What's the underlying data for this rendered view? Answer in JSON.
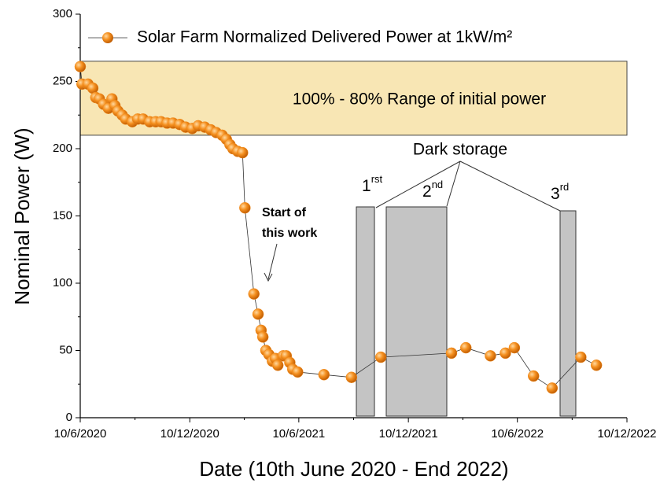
{
  "chart_data": {
    "type": "line",
    "x_label": "Date (10th June 2020  -  End 2022)",
    "y_label": "Nominal Power (W)",
    "xlim": [
      "2020-06-10",
      "2022-12-10"
    ],
    "xticks": [
      {
        "value": "2020-06-10",
        "label": "10/6/2020"
      },
      {
        "value": "2020-12-10",
        "label": "10/12/2020"
      },
      {
        "value": "2021-06-10",
        "label": "10/6/2021"
      },
      {
        "value": "2021-12-10",
        "label": "10/12/2021"
      },
      {
        "value": "2022-06-10",
        "label": "10/6/2022"
      },
      {
        "value": "2022-12-10",
        "label": "10/12/2022"
      }
    ],
    "ylim": [
      0,
      300
    ],
    "yticks": [
      0,
      50,
      100,
      150,
      200,
      250,
      300
    ],
    "x": [
      "2020-06-10",
      "2020-06-13",
      "2020-06-23",
      "2020-07-01",
      "2020-07-06",
      "2020-07-12",
      "2020-07-19",
      "2020-07-27",
      "2020-08-02",
      "2020-08-07",
      "2020-08-12",
      "2020-08-19",
      "2020-08-25",
      "2020-09-05",
      "2020-09-14",
      "2020-09-23",
      "2020-10-04",
      "2020-10-14",
      "2020-10-23",
      "2020-11-02",
      "2020-11-12",
      "2020-11-23",
      "2020-12-03",
      "2020-12-14",
      "2020-12-24",
      "2021-01-04",
      "2021-01-14",
      "2021-01-23",
      "2021-02-02",
      "2021-02-09",
      "2021-02-15",
      "2021-02-20",
      "2021-02-28",
      "2021-03-08",
      "2021-03-12",
      "2021-03-27",
      "2021-04-03",
      "2021-04-08",
      "2021-04-11",
      "2021-04-16",
      "2021-04-21",
      "2021-04-27",
      "2021-05-02",
      "2021-05-06",
      "2021-05-15",
      "2021-05-20",
      "2021-05-26",
      "2021-05-31",
      "2021-06-08",
      "2021-07-22",
      "2021-09-06",
      "2021-10-25",
      "2022-02-20",
      "2022-03-16",
      "2022-04-26",
      "2022-05-21",
      "2022-06-05",
      "2022-07-07",
      "2022-08-07",
      "2022-09-24",
      "2022-10-20"
    ],
    "series": [
      {
        "name": "Solar Farm Normalized Delivered Power at 1kW/m²",
        "color": "#f28c1e",
        "line_color": "#333333",
        "values": [
          261,
          248,
          248,
          245,
          238,
          237,
          233,
          230,
          237,
          232,
          228,
          225,
          222,
          220,
          222,
          222,
          220,
          220,
          220,
          219,
          219,
          218,
          216,
          215,
          217,
          216,
          214,
          212,
          210,
          207,
          203,
          200,
          198,
          197,
          156,
          92,
          77,
          65,
          60,
          50,
          47,
          42,
          44,
          39,
          46,
          46,
          41,
          36,
          34,
          32,
          30,
          45,
          48,
          52,
          46,
          48,
          52,
          31,
          22,
          45,
          39
        ]
      }
    ],
    "band": {
      "range": [
        210,
        265
      ],
      "color": "#f8e6b4",
      "label": "100% - 80% Range of initial power"
    },
    "annotations": {
      "dark_storage": "Dark storage",
      "first": {
        "text": "1",
        "sup": "rst"
      },
      "second": {
        "text": "2",
        "sup": "nd"
      },
      "third": {
        "text": "3",
        "sup": "rd"
      },
      "start_line1": "Start of",
      "start_line2": "this work"
    },
    "legend": "top-left"
  }
}
